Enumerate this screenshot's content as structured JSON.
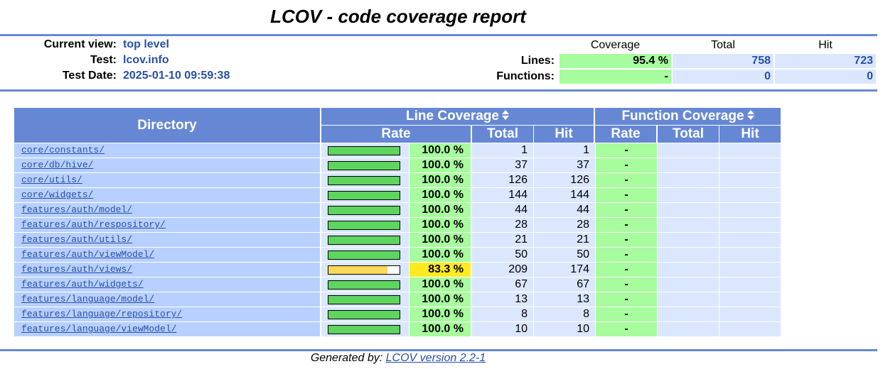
{
  "title": "LCOV - code coverage report",
  "info": {
    "current_view_label": "Current view:",
    "current_view_value": "top level",
    "test_label": "Test:",
    "test_value": "lcov.info",
    "date_label": "Test Date:",
    "date_value": "2025-01-10 09:59:38"
  },
  "summary": {
    "headers": [
      "Coverage",
      "Total",
      "Hit"
    ],
    "lines_label": "Lines:",
    "lines_coverage": "95.4 %",
    "lines_total": "758",
    "lines_hit": "723",
    "functions_label": "Functions:",
    "functions_coverage": "-",
    "functions_total": "0",
    "functions_hit": "0"
  },
  "table": {
    "directory_header": "Directory",
    "line_coverage_header": "Line Coverage",
    "function_coverage_header": "Function Coverage",
    "rate_header": "Rate",
    "total_header": "Total",
    "hit_header": "Hit",
    "rows": [
      {
        "dir": "core/constants/",
        "fraction": 1.0,
        "rate": "100.0 %",
        "total": "1",
        "hit": "1",
        "frate": "-",
        "status": "hi"
      },
      {
        "dir": "core/db/hive/",
        "fraction": 1.0,
        "rate": "100.0 %",
        "total": "37",
        "hit": "37",
        "frate": "-",
        "status": "hi"
      },
      {
        "dir": "core/utils/",
        "fraction": 1.0,
        "rate": "100.0 %",
        "total": "126",
        "hit": "126",
        "frate": "-",
        "status": "hi"
      },
      {
        "dir": "core/widgets/",
        "fraction": 1.0,
        "rate": "100.0 %",
        "total": "144",
        "hit": "144",
        "frate": "-",
        "status": "hi"
      },
      {
        "dir": "features/auth/model/",
        "fraction": 1.0,
        "rate": "100.0 %",
        "total": "44",
        "hit": "44",
        "frate": "-",
        "status": "hi"
      },
      {
        "dir": "features/auth/respository/",
        "fraction": 1.0,
        "rate": "100.0 %",
        "total": "28",
        "hit": "28",
        "frate": "-",
        "status": "hi"
      },
      {
        "dir": "features/auth/utils/",
        "fraction": 1.0,
        "rate": "100.0 %",
        "total": "21",
        "hit": "21",
        "frate": "-",
        "status": "hi"
      },
      {
        "dir": "features/auth/viewModel/",
        "fraction": 1.0,
        "rate": "100.0 %",
        "total": "50",
        "hit": "50",
        "frate": "-",
        "status": "hi"
      },
      {
        "dir": "features/auth/views/",
        "fraction": 0.833,
        "rate": "83.3 %",
        "total": "209",
        "hit": "174",
        "frate": "-",
        "status": "med"
      },
      {
        "dir": "features/auth/widgets/",
        "fraction": 1.0,
        "rate": "100.0 %",
        "total": "67",
        "hit": "67",
        "frate": "-",
        "status": "hi"
      },
      {
        "dir": "features/language/model/",
        "fraction": 1.0,
        "rate": "100.0 %",
        "total": "13",
        "hit": "13",
        "frate": "-",
        "status": "hi"
      },
      {
        "dir": "features/language/repository/",
        "fraction": 1.0,
        "rate": "100.0 %",
        "total": "8",
        "hit": "8",
        "frate": "-",
        "status": "hi"
      },
      {
        "dir": "features/language/viewModel/",
        "fraction": 1.0,
        "rate": "100.0 %",
        "total": "10",
        "hit": "10",
        "frate": "-",
        "status": "hi"
      }
    ]
  },
  "colors": {
    "hi_rate_bg": "#a7fc9d",
    "hi_bar": "#5ed55e",
    "med_rate_bg": "#ffea20",
    "med_bar": "#ffd959",
    "header_bg": "#6688d4"
  },
  "icons": {
    "sort": "sort-updown-icon"
  },
  "footer": {
    "prefix": "Generated by: ",
    "link": "LCOV version 2.2-1"
  }
}
